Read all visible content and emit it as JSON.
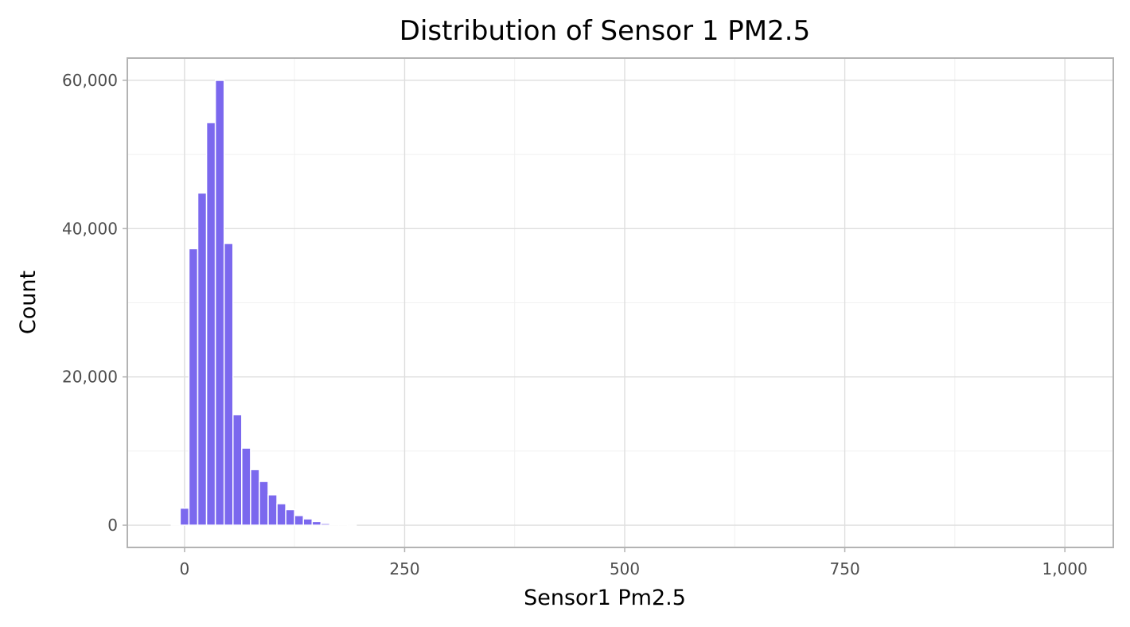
{
  "chart_data": {
    "type": "bar",
    "title": "Distribution of Sensor 1 PM2.5",
    "xlabel": "Sensor1 Pm2.5",
    "ylabel": "Count",
    "xlim": [
      -65,
      1055
    ],
    "ylim": [
      -3000,
      63000
    ],
    "x_ticks": [
      0,
      250,
      500,
      750,
      1000
    ],
    "x_tick_labels": [
      "0",
      "250",
      "500",
      "750",
      "1,000"
    ],
    "y_ticks": [
      0,
      20000,
      40000,
      60000
    ],
    "y_tick_labels": [
      "0",
      "20,000",
      "40,000",
      "60,000"
    ],
    "grid": true,
    "legend": "none",
    "bar_color": "#7b68ee",
    "bin_width": 10,
    "bin_centers": [
      -10,
      0,
      10,
      20,
      30,
      40,
      50,
      60,
      70,
      80,
      90,
      100,
      110,
      120,
      130,
      140,
      150,
      160,
      170,
      180,
      190
    ],
    "values": [
      30,
      2300,
      37300,
      44800,
      54300,
      60000,
      38000,
      14900,
      10400,
      7500,
      5900,
      4100,
      2900,
      2100,
      1300,
      850,
      500,
      230,
      90,
      40,
      15
    ]
  }
}
